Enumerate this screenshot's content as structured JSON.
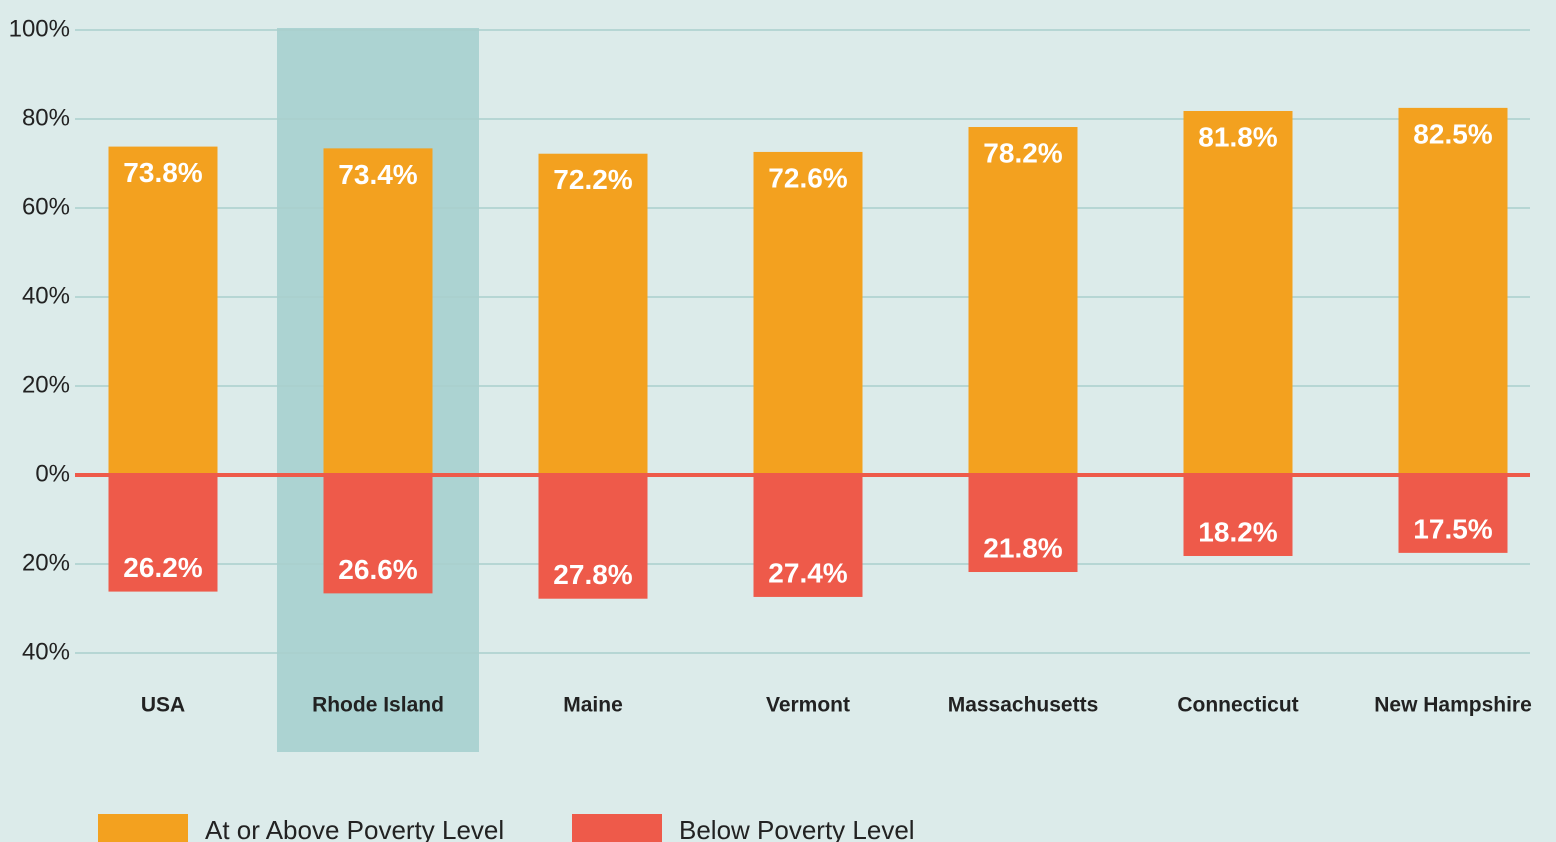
{
  "chart_data": {
    "type": "bar",
    "categories": [
      "USA",
      "Rhode Island",
      "Maine",
      "Vermont",
      "Massachusetts",
      "Connecticut",
      "New Hampshire"
    ],
    "series": [
      {
        "name": "At or Above Poverty Level",
        "color": "#f3a11f",
        "values": [
          73.8,
          73.4,
          72.2,
          72.6,
          78.2,
          81.8,
          82.5
        ],
        "value_labels": [
          "73.8%",
          "73.4%",
          "72.2%",
          "72.6%",
          "78.2%",
          "81.8%",
          "82.5%"
        ]
      },
      {
        "name": "Below Poverty Level",
        "color": "#ee5a4a",
        "values": [
          -26.2,
          -26.6,
          -27.8,
          -27.4,
          -21.8,
          -18.2,
          -17.5
        ],
        "value_labels": [
          "26.2%",
          "26.6%",
          "27.8%",
          "27.4%",
          "21.8%",
          "18.2%",
          "17.5%"
        ]
      }
    ],
    "ylim": [
      -40,
      100
    ],
    "yticks": [
      {
        "value": 100,
        "label": "100%"
      },
      {
        "value": 80,
        "label": "80%"
      },
      {
        "value": 60,
        "label": "60%"
      },
      {
        "value": 40,
        "label": "40%"
      },
      {
        "value": 20,
        "label": "20%"
      },
      {
        "value": 0,
        "label": "0%"
      },
      {
        "value": -20,
        "label": "20%"
      },
      {
        "value": -40,
        "label": "40%"
      }
    ],
    "grid": true,
    "highlight": 1,
    "highlight_color": "#acd3d2",
    "zero_line_color": "#ee5a4a"
  }
}
